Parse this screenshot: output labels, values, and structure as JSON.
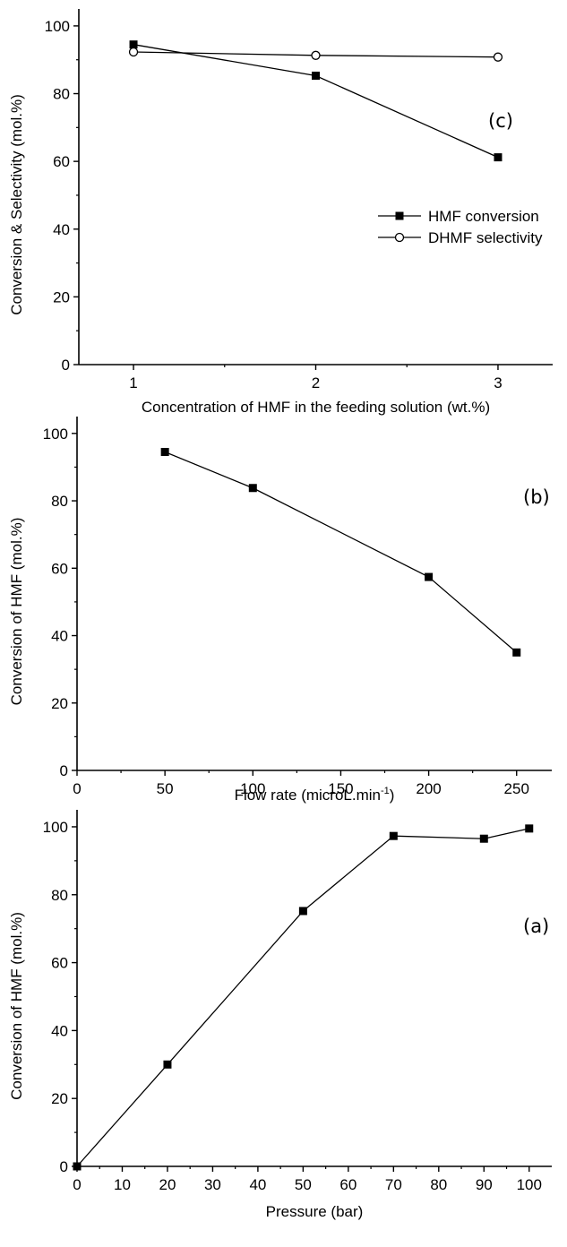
{
  "chart_data": [
    {
      "type": "line",
      "panel": "(c)",
      "xlabel": "Concentration of HMF in the feeding solution (wt.%)",
      "ylabel": "Conversion & Selectivity (mol.%)",
      "xlim": [
        0.7,
        3.3
      ],
      "ylim": [
        0,
        105
      ],
      "x_ticks": [
        "1",
        "2",
        "3"
      ],
      "y_ticks": [
        "0",
        "20",
        "40",
        "60",
        "80",
        "100"
      ],
      "grid": false,
      "legend_position": "right",
      "series": [
        {
          "name": "HMF conversion",
          "marker": "filled-square",
          "x": [
            1,
            2,
            3
          ],
          "y": [
            94.5,
            85.3,
            61.2
          ]
        },
        {
          "name": "DHMF selectivity",
          "marker": "open-circle",
          "x": [
            1,
            2,
            3
          ],
          "y": [
            92.3,
            91.3,
            90.8
          ]
        }
      ]
    },
    {
      "type": "line",
      "panel": "(b)",
      "xlabel": "Flow rate (microL.min",
      "xlabel_superscript": "-1",
      "xlabel_suffix": ")",
      "ylabel": "Conversion of HMF (mol.%)",
      "xlim": [
        0,
        270
      ],
      "ylim": [
        0,
        105
      ],
      "x_ticks": [
        "0",
        "50",
        "100",
        "150",
        "200",
        "250"
      ],
      "y_ticks": [
        "0",
        "20",
        "40",
        "60",
        "80",
        "100"
      ],
      "grid": false,
      "series": [
        {
          "marker": "filled-square",
          "x": [
            50,
            100,
            200,
            250
          ],
          "y": [
            94.5,
            83.8,
            57.4,
            35.0
          ]
        }
      ]
    },
    {
      "type": "line",
      "panel": "(a)",
      "xlabel": "Pressure (bar)",
      "ylabel": "Conversion of HMF (mol.%)",
      "xlim": [
        0,
        105
      ],
      "ylim": [
        0,
        105
      ],
      "x_ticks": [
        "0",
        "10",
        "20",
        "30",
        "40",
        "50",
        "60",
        "70",
        "80",
        "90",
        "100"
      ],
      "y_ticks": [
        "0",
        "20",
        "40",
        "60",
        "80",
        "100"
      ],
      "grid": false,
      "series": [
        {
          "marker": "filled-square",
          "x": [
            0,
            20,
            50,
            70,
            90,
            100
          ],
          "y": [
            0,
            30.0,
            75.2,
            97.3,
            96.5,
            99.5
          ]
        }
      ]
    }
  ]
}
